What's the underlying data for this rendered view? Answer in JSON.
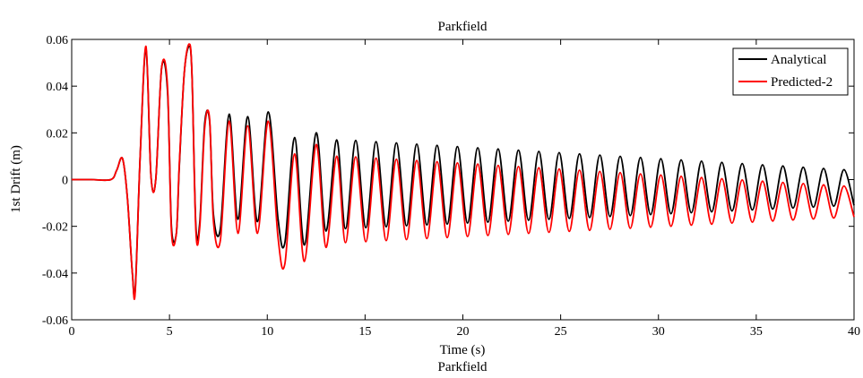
{
  "chart_data": {
    "type": "line",
    "title": "Parkfield",
    "subtitle": "Parkfield",
    "xlabel": "Time (s)",
    "ylabel": "1st Drift (m)",
    "xlim": [
      0,
      40
    ],
    "ylim": [
      -0.06,
      0.06
    ],
    "x_ticks": [
      "0",
      "5",
      "10",
      "15",
      "20",
      "25",
      "30",
      "35",
      "40"
    ],
    "y_ticks": [
      "-0.06",
      "-0.04",
      "-0.02",
      "0",
      "0.02",
      "0.04",
      "0.06"
    ],
    "grid": false,
    "legend_position": "top-right",
    "series": [
      {
        "name": "Analytical",
        "color": "#000000",
        "x": [
          0,
          1.0,
          2.0,
          2.3,
          2.6,
          2.85,
          3.1,
          3.25,
          3.5,
          3.8,
          4.05,
          4.3,
          4.6,
          4.9,
          5.1,
          5.35,
          5.5,
          5.75,
          6.0,
          6.15,
          6.35,
          6.55,
          6.8,
          7.05,
          7.25,
          7.6,
          8.05,
          8.5,
          9.0,
          9.5,
          10.05,
          10.55,
          10.9,
          11.4,
          11.9,
          12.5,
          13.0,
          13.55,
          14.0
        ],
        "y": [
          0,
          0,
          0,
          0.004,
          0.009,
          -0.008,
          -0.04,
          -0.047,
          0.01,
          0.056,
          0.002,
          0.0,
          0.048,
          0.038,
          -0.02,
          -0.023,
          0.005,
          0.045,
          0.057,
          0.045,
          -0.02,
          -0.018,
          0.024,
          0.025,
          -0.015,
          -0.021,
          0.028,
          -0.017,
          0.027,
          -0.018,
          0.029,
          -0.017,
          -0.027,
          0.018,
          -0.028,
          0.02,
          -0.022,
          0.017,
          -0.021
        ]
      },
      {
        "name": "Predicted-2",
        "color": "#ff0000",
        "x": [
          0,
          1.0,
          2.0,
          2.3,
          2.6,
          2.85,
          3.1,
          3.25,
          3.5,
          3.8,
          4.05,
          4.3,
          4.6,
          4.9,
          5.1,
          5.35,
          5.5,
          5.75,
          6.0,
          6.15,
          6.35,
          6.55,
          6.8,
          7.05,
          7.25,
          7.6,
          8.05,
          8.5,
          9.0,
          9.5,
          10.05,
          10.55,
          10.9,
          11.4,
          11.9,
          12.5,
          13.0,
          13.55,
          14.0
        ],
        "y": [
          0,
          0,
          0,
          0.004,
          0.009,
          -0.008,
          -0.04,
          -0.048,
          0.01,
          0.057,
          0.002,
          0.0,
          0.048,
          0.04,
          -0.022,
          -0.023,
          0.006,
          0.045,
          0.058,
          0.045,
          -0.022,
          -0.02,
          0.022,
          0.026,
          -0.018,
          -0.026,
          0.025,
          -0.023,
          0.023,
          -0.023,
          0.025,
          -0.025,
          -0.036,
          0.011,
          -0.035,
          0.015,
          -0.029,
          0.01,
          -0.027
        ]
      }
    ],
    "oscillation": {
      "start_time": 14.0,
      "end_time": 40.0,
      "period_s": 1.04,
      "analytical": {
        "peak_start": 0.017,
        "peak_end": 0.004,
        "trough_start": -0.021,
        "trough_end": -0.011
      },
      "predicted": {
        "peak_start": 0.01,
        "peak_end": -0.003,
        "trough_start": -0.027,
        "trough_end": -0.016
      }
    }
  }
}
